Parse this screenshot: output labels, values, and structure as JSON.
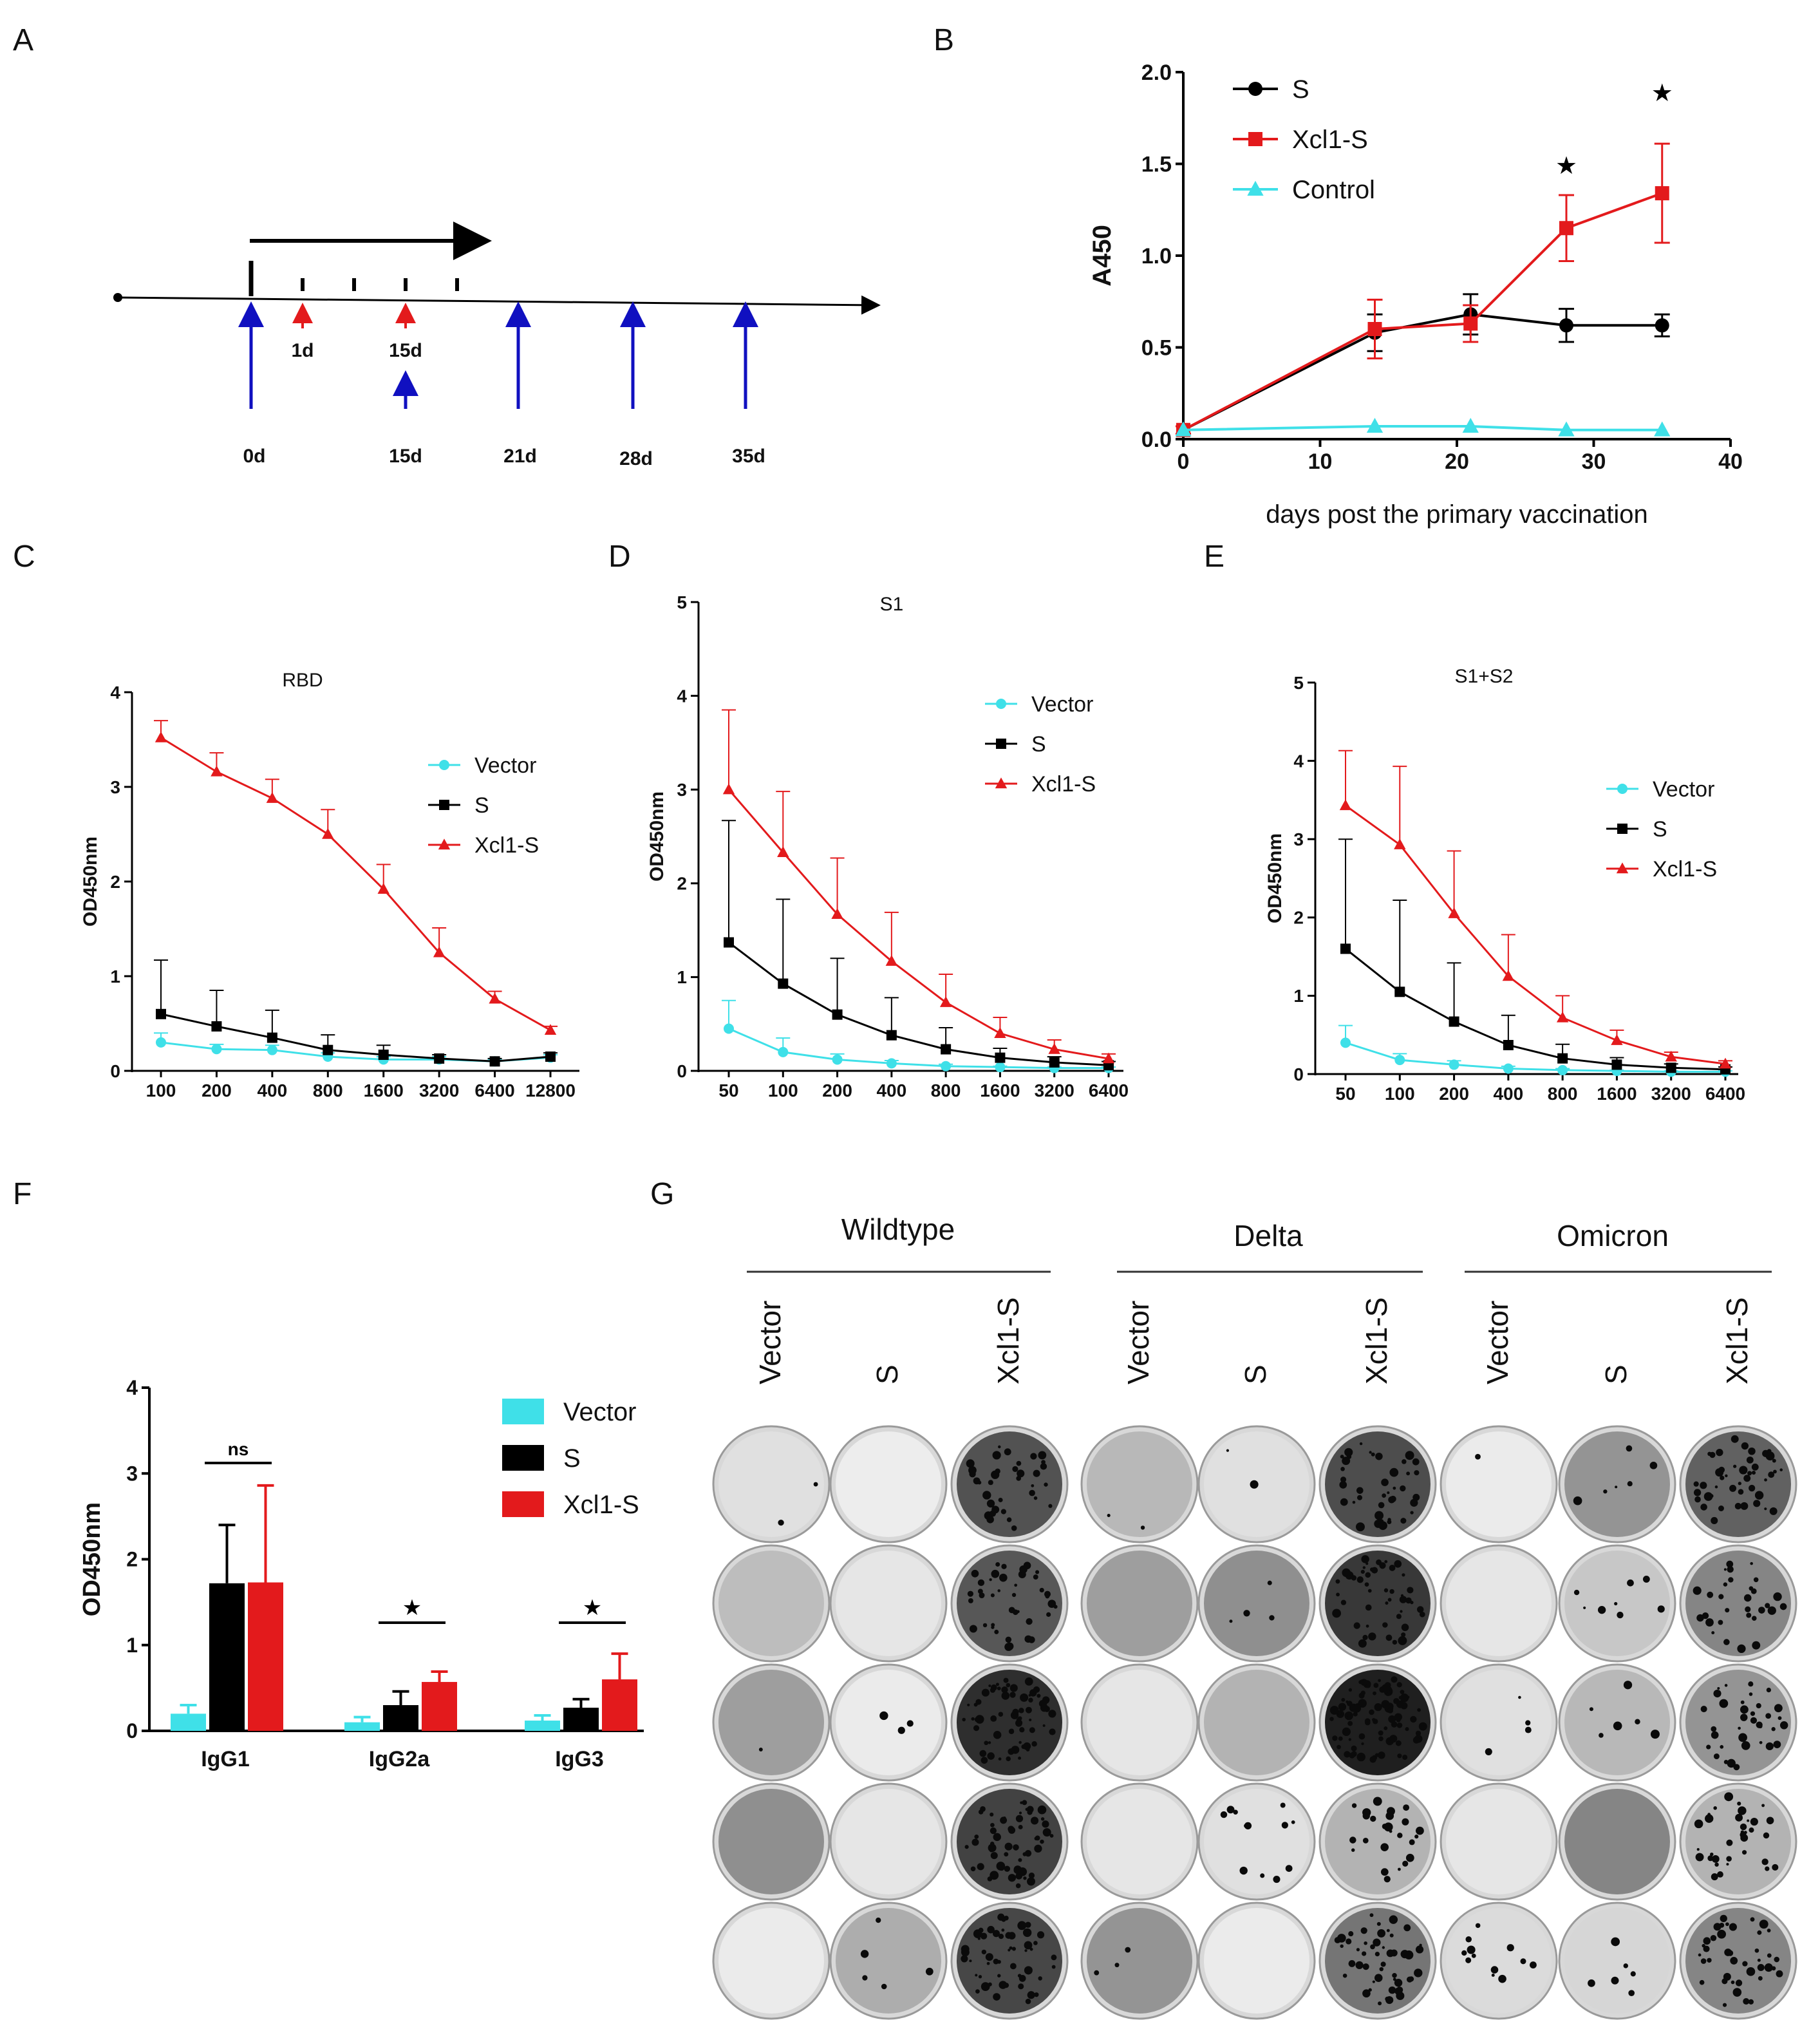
{
  "panels": {
    "A": "A",
    "B": "B",
    "C": "C",
    "D": "D",
    "E": "E",
    "F": "F",
    "G": "G"
  },
  "colors": {
    "S": "#000000",
    "Xcl1-S": "#e31a1c",
    "Control": "#3fe0e8",
    "Vector": "#3fe0e8",
    "blue": "#1010c0",
    "red": "#e31a1c"
  },
  "timeline": {
    "red_labels": [
      "1d",
      "15d"
    ],
    "blue_labels": [
      "0d",
      "15d",
      "21d",
      "28d",
      "35d"
    ]
  },
  "chart_data": [
    {
      "panel": "B",
      "type": "line",
      "title": "",
      "xlabel": "days post the primary vaccination",
      "ylabel": "A450",
      "xlim": [
        0,
        40
      ],
      "ylim": [
        0,
        2.0
      ],
      "xticks": [
        "0",
        "10",
        "20",
        "30",
        "40"
      ],
      "yticks": [
        "0.0",
        "0.5",
        "1.0",
        "1.5",
        "2.0"
      ],
      "series": [
        {
          "name": "S",
          "marker": "circle",
          "x": [
            0,
            14,
            21,
            28,
            35
          ],
          "y": [
            0.05,
            0.58,
            0.68,
            0.62,
            0.62
          ],
          "err": [
            0.02,
            0.1,
            0.11,
            0.09,
            0.06
          ]
        },
        {
          "name": "Xcl1-S",
          "marker": "square",
          "x": [
            0,
            14,
            21,
            28,
            35
          ],
          "y": [
            0.05,
            0.6,
            0.63,
            1.15,
            1.34
          ],
          "err": [
            0.02,
            0.16,
            0.1,
            0.18,
            0.27
          ]
        },
        {
          "name": "Control",
          "marker": "triangle",
          "x": [
            0,
            14,
            21,
            28,
            35
          ],
          "y": [
            0.05,
            0.07,
            0.07,
            0.05,
            0.05
          ],
          "err": [
            0,
            0,
            0,
            0,
            0
          ]
        }
      ],
      "annotations": [
        {
          "x": 28,
          "text": "★"
        },
        {
          "x": 35,
          "text": "★"
        }
      ]
    },
    {
      "panel": "C",
      "type": "line",
      "title": "RBD",
      "xlabel": "",
      "ylabel": "OD450nm",
      "ylim": [
        0,
        4
      ],
      "categories": [
        "100",
        "200",
        "400",
        "800",
        "1600",
        "3200",
        "6400",
        "12800"
      ],
      "yticks": [
        "0",
        "1",
        "2",
        "3",
        "4"
      ],
      "series": [
        {
          "name": "Vector",
          "marker": "circle",
          "values": [
            0.3,
            0.23,
            0.22,
            0.15,
            0.12,
            0.12,
            0.1,
            0.14
          ],
          "err": [
            0.1,
            0.05,
            0.05,
            0.04,
            0.03,
            0.03,
            0.02,
            0.03
          ]
        },
        {
          "name": "S",
          "marker": "square",
          "values": [
            0.6,
            0.47,
            0.35,
            0.22,
            0.17,
            0.13,
            0.1,
            0.15
          ],
          "err": [
            0.57,
            0.38,
            0.29,
            0.16,
            0.1,
            0.04,
            0.03,
            0.04
          ]
        },
        {
          "name": "Xcl1-S",
          "marker": "triangle",
          "values": [
            3.52,
            3.16,
            2.88,
            2.5,
            1.92,
            1.25,
            0.76,
            0.43
          ],
          "err": [
            0.18,
            0.2,
            0.2,
            0.26,
            0.26,
            0.26,
            0.08,
            0.04
          ]
        }
      ]
    },
    {
      "panel": "D",
      "type": "line",
      "title": "S1",
      "xlabel": "",
      "ylabel": "OD450nm",
      "ylim": [
        0,
        5
      ],
      "categories": [
        "50",
        "100",
        "200",
        "400",
        "800",
        "1600",
        "3200",
        "6400"
      ],
      "yticks": [
        "0",
        "1",
        "2",
        "3",
        "4",
        "5"
      ],
      "series": [
        {
          "name": "Vector",
          "marker": "circle",
          "values": [
            0.45,
            0.2,
            0.12,
            0.08,
            0.05,
            0.04,
            0.03,
            0.03
          ],
          "err": [
            0.3,
            0.15,
            0.06,
            0.03,
            0.02,
            0.01,
            0.01,
            0.01
          ]
        },
        {
          "name": "S",
          "marker": "square",
          "values": [
            1.37,
            0.93,
            0.6,
            0.38,
            0.23,
            0.14,
            0.09,
            0.06
          ],
          "err": [
            1.3,
            0.9,
            0.6,
            0.4,
            0.23,
            0.1,
            0.06,
            0.04
          ]
        },
        {
          "name": "Xcl1-S",
          "marker": "triangle",
          "values": [
            3.0,
            2.33,
            1.67,
            1.17,
            0.73,
            0.4,
            0.23,
            0.13
          ],
          "err": [
            0.85,
            0.65,
            0.6,
            0.52,
            0.3,
            0.17,
            0.1,
            0.05
          ]
        }
      ]
    },
    {
      "panel": "E",
      "type": "line",
      "title": "S1+S2",
      "xlabel": "",
      "ylabel": "OD450nm",
      "ylim": [
        0,
        5
      ],
      "categories": [
        "50",
        "100",
        "200",
        "400",
        "800",
        "1600",
        "3200",
        "6400"
      ],
      "yticks": [
        "0",
        "1",
        "2",
        "3",
        "4",
        "5"
      ],
      "series": [
        {
          "name": "Vector",
          "marker": "circle",
          "values": [
            0.4,
            0.18,
            0.12,
            0.07,
            0.05,
            0.04,
            0.03,
            0.03
          ],
          "err": [
            0.22,
            0.08,
            0.05,
            0.03,
            0.02,
            0.01,
            0.01,
            0.01
          ]
        },
        {
          "name": "S",
          "marker": "square",
          "values": [
            1.6,
            1.05,
            0.67,
            0.37,
            0.2,
            0.12,
            0.08,
            0.06
          ],
          "err": [
            1.4,
            1.17,
            0.75,
            0.38,
            0.18,
            0.09,
            0.05,
            0.03
          ]
        },
        {
          "name": "Xcl1-S",
          "marker": "triangle",
          "values": [
            3.43,
            2.93,
            2.05,
            1.25,
            0.72,
            0.43,
            0.22,
            0.13
          ],
          "err": [
            0.7,
            1.0,
            0.8,
            0.53,
            0.28,
            0.13,
            0.06,
            0.04
          ]
        }
      ]
    },
    {
      "panel": "F",
      "type": "bar",
      "title": "",
      "xlabel": "",
      "ylabel": "OD450nm",
      "ylim": [
        0,
        4
      ],
      "categories": [
        "IgG1",
        "IgG2a",
        "IgG3"
      ],
      "yticks": [
        "0",
        "1",
        "2",
        "3",
        "4"
      ],
      "series": [
        {
          "name": "Vector",
          "values": [
            0.2,
            0.1,
            0.12
          ],
          "err": [
            0.1,
            0.06,
            0.06
          ]
        },
        {
          "name": "S",
          "values": [
            1.72,
            0.3,
            0.27
          ],
          "err": [
            0.68,
            0.16,
            0.1
          ]
        },
        {
          "name": "Xcl1-S",
          "values": [
            1.73,
            0.57,
            0.6
          ],
          "err": [
            1.13,
            0.12,
            0.3
          ]
        }
      ],
      "annotations": [
        {
          "group": "IgG1",
          "text": "ns"
        },
        {
          "group": "IgG2a",
          "text": "★"
        },
        {
          "group": "IgG3",
          "text": "★"
        }
      ]
    }
  ],
  "panelG": {
    "groups": [
      "Wildtype",
      "Delta",
      "Omicron"
    ],
    "columns": [
      "Vector",
      "S",
      "Xcl1-S"
    ],
    "row_count": 5,
    "well_tone": [
      [
        0.88,
        0.93,
        0.32,
        0.72,
        0.88,
        0.3,
        0.92,
        0.58,
        0.38
      ],
      [
        0.74,
        0.9,
        0.34,
        0.62,
        0.56,
        0.22,
        0.9,
        0.78,
        0.52
      ],
      [
        0.62,
        0.92,
        0.18,
        0.9,
        0.7,
        0.12,
        0.88,
        0.72,
        0.58
      ],
      [
        0.56,
        0.9,
        0.26,
        0.9,
        0.88,
        0.7,
        0.9,
        0.52,
        0.7
      ],
      [
        0.92,
        0.68,
        0.28,
        0.58,
        0.92,
        0.46,
        0.86,
        0.84,
        0.52
      ]
    ],
    "plaques": [
      [
        2,
        0,
        35,
        2,
        2,
        40,
        1,
        6,
        45
      ],
      [
        0,
        0,
        40,
        0,
        4,
        50,
        0,
        8,
        30
      ],
      [
        1,
        3,
        70,
        0,
        0,
        90,
        4,
        6,
        35
      ],
      [
        0,
        0,
        60,
        0,
        12,
        25,
        0,
        0,
        35
      ],
      [
        0,
        5,
        55,
        3,
        0,
        50,
        12,
        6,
        40
      ]
    ]
  }
}
